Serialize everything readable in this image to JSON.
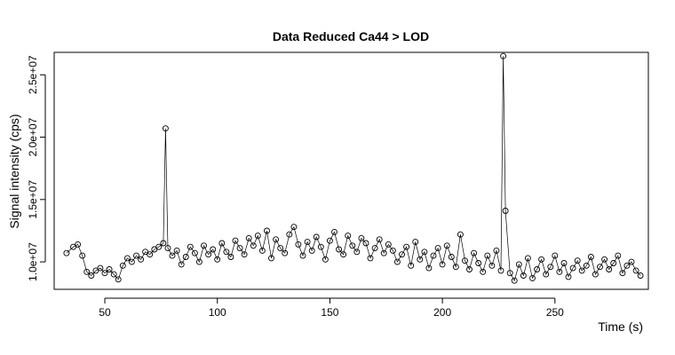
{
  "chart_data": {
    "type": "scatter",
    "title": "Data Reduced Ca44 > LOD",
    "xlabel": "Time (s)",
    "ylabel": "Signal intensity (cps)",
    "xlim": [
      27.5,
      291.5
    ],
    "ylim": [
      7800000.0,
      26800000.0
    ],
    "x_ticks": [
      50,
      100,
      150,
      200,
      250
    ],
    "x_tick_labels": [
      "50",
      "100",
      "150",
      "200",
      "250"
    ],
    "y_ticks": [
      10000000.0,
      15000000.0,
      20000000.0,
      25000000.0
    ],
    "y_tick_labels": [
      "1.0e+07",
      "1.5e+07",
      "2.0e+07",
      "2.5e+07"
    ],
    "grid": false,
    "legend": "none",
    "marker": "open-circle",
    "connecting_line": true,
    "color": "#000000",
    "series": [
      {
        "x": [
          33,
          36,
          38,
          40,
          42,
          44,
          46,
          48,
          50,
          52,
          54,
          56,
          58,
          60,
          62,
          64,
          66,
          68,
          70,
          72,
          74,
          76,
          77,
          78,
          80,
          82,
          84,
          86,
          88,
          90,
          92,
          94,
          96,
          98,
          100,
          102,
          104,
          106,
          108,
          110,
          112,
          114,
          116,
          118,
          120,
          122,
          124,
          126,
          128,
          130,
          132,
          134,
          136,
          138,
          140,
          142,
          144,
          146,
          148,
          150,
          152,
          154,
          156,
          158,
          160,
          162,
          164,
          166,
          168,
          170,
          172,
          174,
          176,
          178,
          180,
          182,
          184,
          186,
          188,
          190,
          192,
          194,
          196,
          198,
          200,
          202,
          204,
          206,
          208,
          210,
          212,
          214,
          216,
          218,
          220,
          222,
          224,
          226,
          227,
          228,
          230,
          232,
          234,
          236,
          238,
          240,
          242,
          244,
          246,
          248,
          250,
          252,
          254,
          256,
          258,
          260,
          262,
          264,
          266,
          268,
          270,
          272,
          274,
          276,
          278,
          280,
          282,
          284,
          286,
          288
        ],
        "y": [
          10700000.0,
          11200000.0,
          11400000.0,
          10500000.0,
          9200000.0,
          8900000.0,
          9300000.0,
          9500000.0,
          9100000.0,
          9400000.0,
          9000000.0,
          8600000.0,
          9700000.0,
          10300000.0,
          10000000.0,
          10500000.0,
          10200000.0,
          10800000.0,
          10600000.0,
          11000000.0,
          11200000.0,
          11500000.0,
          20700000.0,
          11100000.0,
          10500000.0,
          10900000.0,
          9800000.0,
          10400000.0,
          11200000.0,
          10700000.0,
          10000000.0,
          11300000.0,
          10600000.0,
          11000000.0,
          10200000.0,
          11500000.0,
          10800000.0,
          10400000.0,
          11700000.0,
          11100000.0,
          10600000.0,
          11900000.0,
          11300000.0,
          12100000.0,
          10900000.0,
          12500000.0,
          10300000.0,
          11800000.0,
          11100000.0,
          10700000.0,
          12200000.0,
          12800000.0,
          11400000.0,
          10500000.0,
          11600000.0,
          10900000.0,
          12000000.0,
          11200000.0,
          10200000.0,
          11700000.0,
          12400000.0,
          11000000.0,
          10600000.0,
          12100000.0,
          11300000.0,
          10800000.0,
          11900000.0,
          11500000.0,
          10300000.0,
          11100000.0,
          11800000.0,
          10700000.0,
          11400000.0,
          10900000.0,
          10000000.0,
          10600000.0,
          11200000.0,
          9700000.0,
          11600000.0,
          10200000.0,
          10800000.0,
          9500000.0,
          10500000.0,
          11100000.0,
          9800000.0,
          11300000.0,
          10400000.0,
          9600000.0,
          12200000.0,
          10100000.0,
          9400000.0,
          10700000.0,
          9900000.0,
          9200000.0,
          10500000.0,
          9700000.0,
          10900000.0,
          9300000.0,
          26500000.0,
          14100000.0,
          9100000.0,
          8500000.0,
          9800000.0,
          8900000.0,
          10300000.0,
          8700000.0,
          9400000.0,
          10200000.0,
          9000000.0,
          9600000.0,
          10500000.0,
          9200000.0,
          9900000.0,
          8800000.0,
          9500000.0,
          10100000.0,
          9300000.0,
          9700000.0,
          10400000.0,
          9000000.0,
          9600000.0,
          10200000.0,
          9400000.0,
          9900000.0,
          10500000.0,
          9100000.0,
          9700000.0,
          10000000.0,
          9300000.0,
          8900000.0
        ]
      }
    ]
  }
}
